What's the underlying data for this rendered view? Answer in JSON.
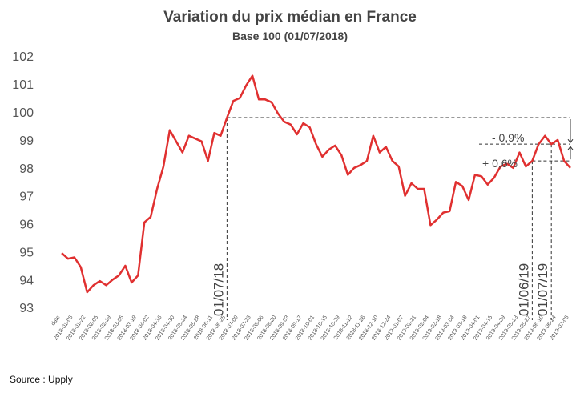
{
  "chart_data": {
    "type": "line",
    "title": "Variation du prix médian en France",
    "subtitle": "Base 100 (01/07/2018)",
    "source": "Source : Upply",
    "categories": [
      "date",
      null,
      "2018-01-08",
      null,
      "2018-01-22",
      null,
      "2018-02-05",
      null,
      "2018-02-19",
      null,
      "2018-03-05",
      null,
      "2018-03-19",
      null,
      "2018-04-02",
      null,
      "2018-04-16",
      null,
      "2018-04-30",
      null,
      "2018-05-14",
      null,
      "2018-05-28",
      null,
      "2018-06-11",
      null,
      "2018-06-25",
      null,
      "2018-07-09",
      null,
      "2018-07-23",
      null,
      "2018-08-06",
      null,
      "2018-08-20",
      null,
      "2018-09-03",
      null,
      "2018-09-17",
      null,
      "2018-10-01",
      null,
      "2018-10-15",
      null,
      "2018-10-29",
      null,
      "2018-11-12",
      null,
      "2018-11-26",
      null,
      "2018-12-10",
      null,
      "2018-12-24",
      null,
      "2019-01-07",
      null,
      "2019-01-21",
      null,
      "2019-02-04",
      null,
      "2019-02-18",
      null,
      "2019-03-04",
      null,
      "2019-03-18",
      null,
      "2019-04-01",
      null,
      "2019-04-15",
      null,
      "2019-04-29",
      null,
      "2019-05-13",
      null,
      "2019-05-27",
      null,
      "2019-06-10",
      null,
      "2019-06-24",
      null,
      "2019-07-08"
    ],
    "series": [
      {
        "name": "Prix médian",
        "color": "#e03030",
        "values": [
          95.0,
          94.8,
          94.85,
          94.5,
          93.6,
          93.85,
          94.0,
          93.85,
          94.05,
          94.2,
          94.55,
          93.95,
          94.2,
          96.1,
          96.3,
          97.3,
          98.1,
          99.4,
          99.0,
          98.6,
          99.2,
          99.1,
          99.0,
          98.3,
          99.3,
          99.2,
          99.85,
          100.45,
          100.55,
          101.0,
          101.35,
          100.5,
          100.5,
          100.4,
          100.0,
          99.7,
          99.6,
          99.25,
          99.65,
          99.5,
          98.9,
          98.45,
          98.7,
          98.85,
          98.5,
          97.8,
          98.05,
          98.15,
          98.3,
          99.2,
          98.6,
          98.8,
          98.3,
          98.1,
          97.05,
          97.5,
          97.3,
          97.3,
          96.0,
          96.2,
          96.45,
          96.5,
          97.55,
          97.4,
          96.9,
          97.8,
          97.75,
          97.45,
          97.7,
          98.1,
          98.2,
          98.05,
          98.6,
          98.1,
          98.3,
          98.9,
          99.2,
          98.9,
          99.05,
          98.3,
          98.05
        ]
      }
    ],
    "ylim": [
      93,
      102
    ],
    "yticks": [
      93,
      94,
      95,
      96,
      97,
      98,
      99,
      100,
      101,
      102
    ],
    "grid": false,
    "annotations": [
      "01/07/18",
      "01/06/19",
      "01/07/19",
      "- 0,9%",
      "+ 0,6%"
    ]
  }
}
